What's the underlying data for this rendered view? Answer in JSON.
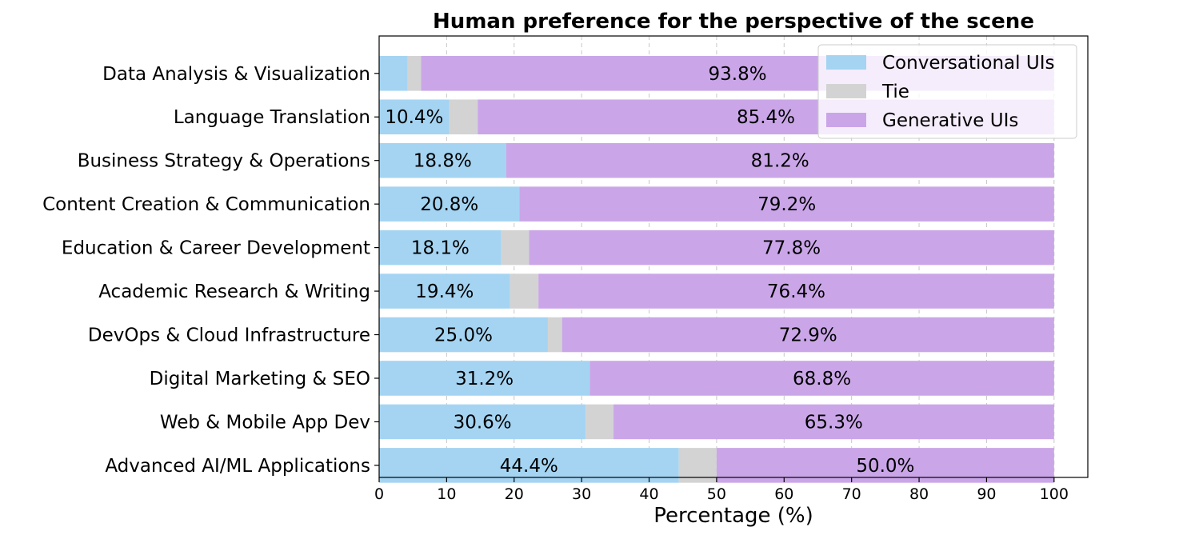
{
  "chart_data": {
    "type": "bar",
    "orientation": "horizontal",
    "stacked": true,
    "title": "Human preference for the perspective of the scene",
    "xlabel": "Percentage (%)",
    "ylabel": "",
    "xlim": [
      0,
      105
    ],
    "xticks": [
      "0",
      "10",
      "20",
      "30",
      "40",
      "50",
      "60",
      "70",
      "80",
      "90",
      "100"
    ],
    "grid": "vertical dashed",
    "legend_position": "top-right",
    "categories": [
      "Data Analysis & Visualization",
      "Language Translation",
      "Business Strategy & Operations",
      "Content Creation & Communication",
      "Education & Career Development",
      "Academic Research & Writing",
      "DevOps & Cloud Infrastructure",
      "Digital Marketing & SEO",
      "Web & Mobile App Dev",
      "Advanced AI/ML Applications"
    ],
    "series": [
      {
        "name": "Conversational UIs",
        "color": "#a4d4f2",
        "values": [
          4.2,
          10.4,
          18.8,
          20.8,
          18.1,
          19.4,
          25.0,
          31.2,
          30.6,
          44.4
        ],
        "labels": [
          "",
          "10.4%",
          "18.8%",
          "20.8%",
          "18.1%",
          "19.4%",
          "25.0%",
          "31.2%",
          "30.6%",
          "44.4%"
        ]
      },
      {
        "name": "Tie",
        "color": "#d3d3d3",
        "values": [
          2.0,
          4.2,
          0.0,
          0.0,
          4.1,
          4.2,
          2.1,
          0.0,
          4.1,
          5.6
        ],
        "labels": [
          "",
          "",
          "",
          "",
          "",
          "",
          "",
          "",
          "",
          ""
        ]
      },
      {
        "name": "Generative UIs",
        "color": "#caa6e8",
        "values": [
          93.8,
          85.4,
          81.2,
          79.2,
          77.8,
          76.4,
          72.9,
          68.8,
          65.3,
          50.0
        ],
        "labels": [
          "93.8%",
          "85.4%",
          "81.2%",
          "79.2%",
          "77.8%",
          "76.4%",
          "72.9%",
          "68.8%",
          "65.3%",
          "50.0%"
        ]
      }
    ]
  }
}
